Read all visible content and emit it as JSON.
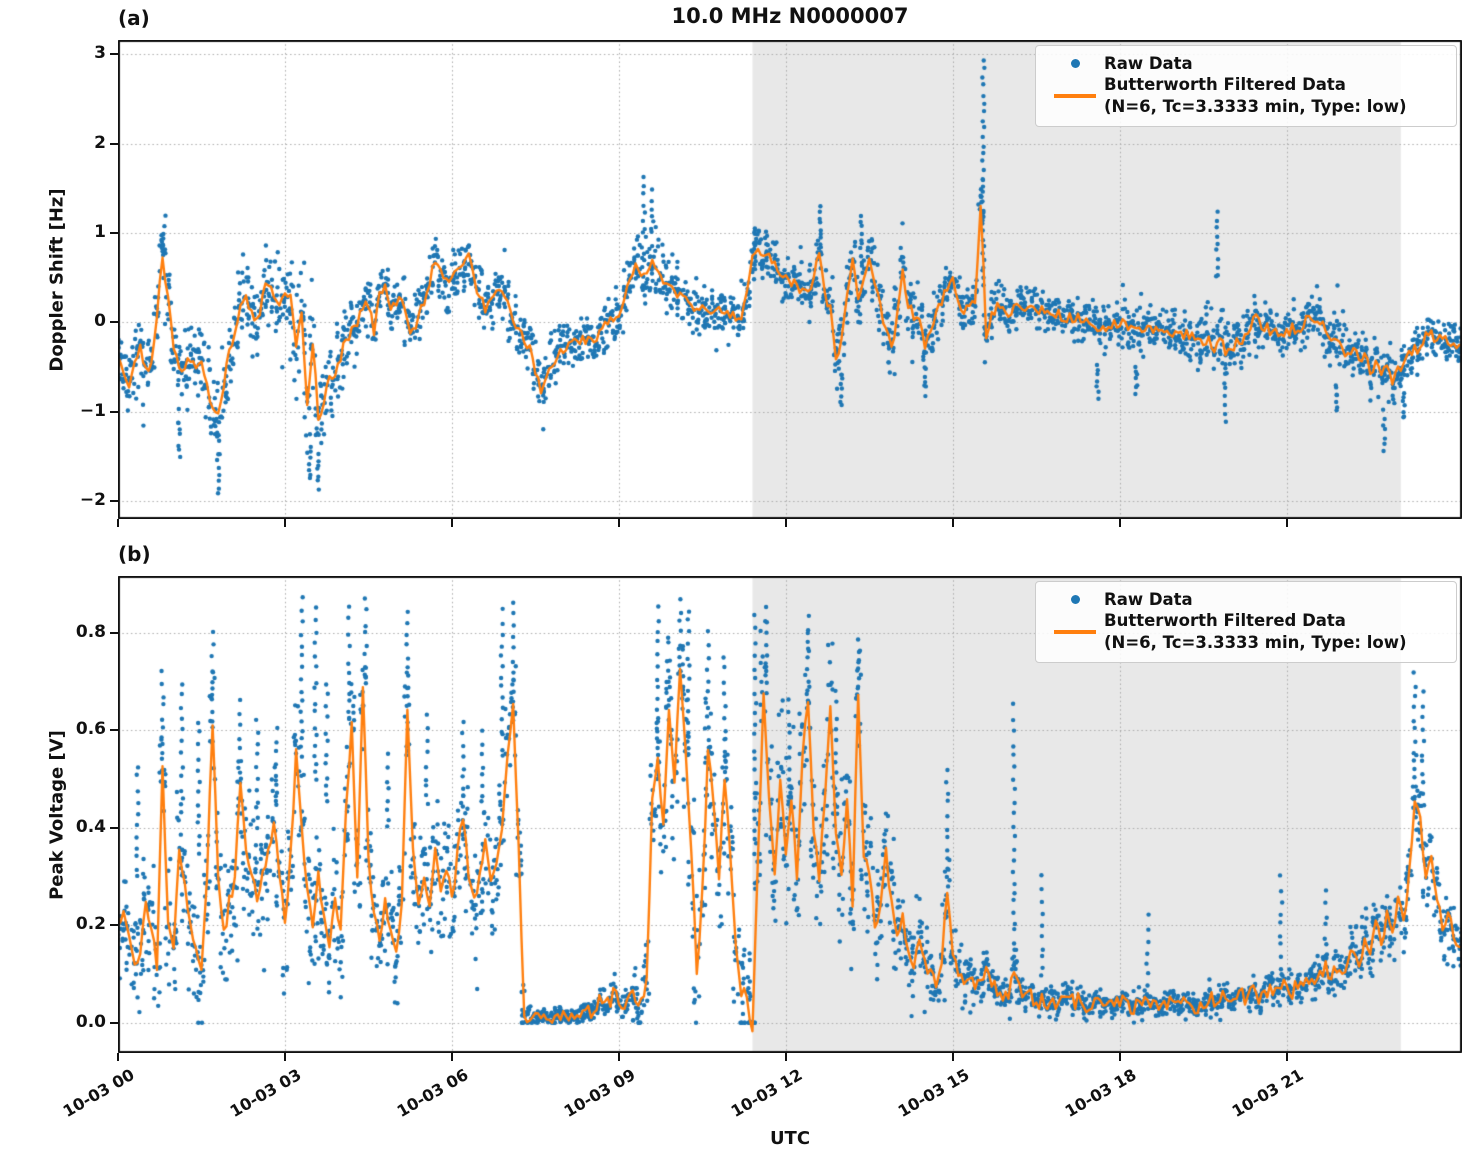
{
  "title": "10.0 MHz N0000007",
  "x_axis": {
    "label": "UTC",
    "range_hours": [
      0,
      24.15
    ],
    "ticks": [
      {
        "hour": 0,
        "label": "10-03 00"
      },
      {
        "hour": 3,
        "label": "10-03 03"
      },
      {
        "hour": 6,
        "label": "10-03 06"
      },
      {
        "hour": 9,
        "label": "10-03 09"
      },
      {
        "hour": 12,
        "label": "10-03 12"
      },
      {
        "hour": 15,
        "label": "10-03 15"
      },
      {
        "hour": 18,
        "label": "10-03 18"
      },
      {
        "hour": 21,
        "label": "10-03 21"
      }
    ]
  },
  "legend": {
    "raw": "Raw Data",
    "filtered_line1": "Butterworth Filtered Data",
    "filtered_line2": "(N=6, Tc=3.3333 min, Type: low)"
  },
  "colors": {
    "raw": "#1f77b4",
    "filtered": "#ff7f0e",
    "shade": "#e8e8e8",
    "grid": "#ababab",
    "frame": "#111111"
  },
  "chart_data": [
    {
      "type": "scatter+line",
      "panel_label": "(a)",
      "ylabel": "Doppler Shift [Hz]",
      "ylim": [
        -2.2,
        3.16
      ],
      "ytick_values": [
        3,
        2,
        1,
        0,
        -1,
        -2
      ],
      "ytick_labels": [
        "3",
        "2",
        "1",
        "0",
        "−1",
        "−2"
      ],
      "shade_hours": [
        11.4,
        23.05
      ],
      "x_start_hour": 0,
      "x_step_hour": 0.1,
      "line_jitter": 0.05,
      "clamp_min": null,
      "filtered": [
        -0.35,
        -0.55,
        -0.7,
        -0.45,
        -0.3,
        -0.55,
        -0.4,
        0.1,
        0.75,
        0.3,
        -0.3,
        -0.5,
        -0.55,
        -0.4,
        -0.5,
        -0.45,
        -0.7,
        -1.0,
        -1.05,
        -0.7,
        -0.35,
        -0.15,
        0.2,
        0.3,
        0.1,
        0.0,
        0.3,
        0.45,
        0.25,
        0.2,
        0.3,
        0.35,
        -0.3,
        0.1,
        -0.9,
        -0.2,
        -1.1,
        -0.9,
        -0.65,
        -0.6,
        -0.4,
        -0.2,
        -0.1,
        0.0,
        0.15,
        0.2,
        -0.1,
        0.3,
        0.45,
        0.15,
        0.2,
        0.25,
        0.0,
        -0.1,
        0.1,
        0.2,
        0.45,
        0.7,
        0.55,
        0.45,
        0.5,
        0.55,
        0.65,
        0.75,
        0.5,
        0.3,
        0.1,
        0.25,
        0.35,
        0.3,
        0.25,
        0.05,
        -0.1,
        -0.2,
        -0.3,
        -0.55,
        -0.75,
        -0.6,
        -0.45,
        -0.35,
        -0.3,
        -0.25,
        -0.2,
        -0.25,
        -0.2,
        -0.15,
        -0.2,
        -0.1,
        0.0,
        0.05,
        0.1,
        0.3,
        0.5,
        0.65,
        0.55,
        0.55,
        0.7,
        0.6,
        0.45,
        0.4,
        0.4,
        0.3,
        0.25,
        0.2,
        0.2,
        0.15,
        0.1,
        0.15,
        0.15,
        0.1,
        0.1,
        0.05,
        0.05,
        0.3,
        0.75,
        0.8,
        0.7,
        0.75,
        0.65,
        0.55,
        0.5,
        0.45,
        0.45,
        0.35,
        0.3,
        0.5,
        0.8,
        0.3,
        0.2,
        -0.4,
        -0.2,
        0.3,
        0.7,
        0.25,
        0.45,
        0.75,
        0.4,
        0.2,
        -0.1,
        -0.3,
        0.1,
        0.6,
        0.2,
        0.05,
        0.0,
        -0.25,
        -0.1,
        0.1,
        0.2,
        0.4,
        0.5,
        0.25,
        0.1,
        0.2,
        0.2,
        1.35,
        -0.15,
        0.1,
        0.2,
        0.15,
        0.1,
        0.15,
        0.2,
        0.15,
        0.2,
        0.1,
        0.15,
        0.1,
        0.05,
        0.1,
        0.05,
        0.1,
        0.05,
        0.0,
        0.05,
        0.0,
        -0.05,
        0.0,
        -0.05,
        0.0,
        -0.05,
        0.0,
        -0.05,
        -0.05,
        -0.1,
        -0.05,
        -0.1,
        -0.05,
        -0.1,
        -0.15,
        -0.1,
        -0.15,
        -0.1,
        -0.15,
        -0.2,
        -0.25,
        -0.2,
        -0.3,
        -0.15,
        -0.35,
        -0.3,
        -0.2,
        -0.25,
        -0.1,
        0.05,
        0.0,
        -0.05,
        -0.1,
        -0.05,
        -0.15,
        -0.1,
        -0.05,
        -0.1,
        -0.05,
        0.1,
        0.05,
        0.0,
        -0.1,
        -0.2,
        -0.15,
        -0.3,
        -0.35,
        -0.3,
        -0.45,
        -0.35,
        -0.55,
        -0.45,
        -0.6,
        -0.5,
        -0.65,
        -0.5,
        -0.45,
        -0.35,
        -0.25,
        -0.3,
        -0.15,
        -0.1,
        -0.2,
        -0.15,
        -0.25,
        -0.2,
        -0.3
      ],
      "band_halfwidth_step": 0.5,
      "band_halfwidth": [
        0.5,
        0.5,
        0.55,
        0.6,
        0.6,
        0.5,
        0.5,
        0.8,
        0.5,
        0.4,
        0.4,
        0.4,
        0.45,
        0.45,
        0.4,
        0.4,
        0.35,
        0.35,
        0.4,
        0.5,
        0.4,
        0.35,
        0.3,
        0.35,
        0.35,
        0.4,
        0.5,
        0.45,
        0.45,
        0.4,
        0.35,
        0.35,
        0.3,
        0.3,
        0.3,
        0.3,
        0.3,
        0.35,
        0.35,
        0.4,
        0.4,
        0.35,
        0.3,
        0.35,
        0.35,
        0.4,
        0.35,
        0.3,
        0.3
      ],
      "spikes": [
        {
          "x": 0.8,
          "y0": 0.8,
          "y1": 0.97
        },
        {
          "x": 1.1,
          "y0": -1.1,
          "y1": -1.5
        },
        {
          "x": 1.8,
          "y0": -1.5,
          "y1": -1.93
        },
        {
          "x": 3.45,
          "y0": -1.4,
          "y1": -1.78
        },
        {
          "x": 3.6,
          "y0": -1.5,
          "y1": -1.85
        },
        {
          "x": 9.45,
          "y0": 1.0,
          "y1": 1.62
        },
        {
          "x": 9.6,
          "y0": 1.0,
          "y1": 1.45
        },
        {
          "x": 11.45,
          "y0": 0.85,
          "y1": 1.05
        },
        {
          "x": 12.62,
          "y0": 0.95,
          "y1": 1.3
        },
        {
          "x": 13.35,
          "y0": 0.85,
          "y1": 1.2
        },
        {
          "x": 15.55,
          "y0": 0.45,
          "y1": 2.93
        },
        {
          "x": 19.75,
          "y0": 0.5,
          "y1": 1.25
        },
        {
          "x": 13.0,
          "y0": -0.6,
          "y1": -0.95
        },
        {
          "x": 14.5,
          "y0": -0.5,
          "y1": -0.8
        },
        {
          "x": 17.6,
          "y0": -0.5,
          "y1": -0.85
        },
        {
          "x": 18.3,
          "y0": -0.5,
          "y1": -0.8
        },
        {
          "x": 19.9,
          "y0": -0.6,
          "y1": -1.1
        },
        {
          "x": 21.9,
          "y0": -0.7,
          "y1": -1.0
        },
        {
          "x": 22.75,
          "y0": -1.0,
          "y1": -1.45
        },
        {
          "x": 23.1,
          "y0": -0.8,
          "y1": -1.1
        }
      ]
    },
    {
      "type": "scatter+line",
      "panel_label": "(b)",
      "ylabel": "Peak Voltage [V]",
      "ylim": [
        -0.062,
        0.917
      ],
      "ytick_values": [
        0.8,
        0.6,
        0.4,
        0.2,
        0.0
      ],
      "ytick_labels": [
        "0.8",
        "0.6",
        "0.4",
        "0.2",
        "0.0"
      ],
      "shade_hours": [
        11.4,
        23.05
      ],
      "x_start_hour": 0,
      "x_step_hour": 0.1,
      "line_jitter": 0.012,
      "clamp_min": 0.0,
      "filtered": [
        0.2,
        0.22,
        0.18,
        0.12,
        0.15,
        0.25,
        0.2,
        0.12,
        0.52,
        0.2,
        0.15,
        0.35,
        0.28,
        0.2,
        0.15,
        0.12,
        0.3,
        0.62,
        0.3,
        0.18,
        0.25,
        0.3,
        0.5,
        0.35,
        0.3,
        0.25,
        0.3,
        0.35,
        0.42,
        0.3,
        0.2,
        0.35,
        0.55,
        0.4,
        0.28,
        0.2,
        0.3,
        0.22,
        0.15,
        0.25,
        0.2,
        0.45,
        0.62,
        0.3,
        0.7,
        0.35,
        0.22,
        0.18,
        0.25,
        0.2,
        0.15,
        0.25,
        0.65,
        0.35,
        0.25,
        0.3,
        0.25,
        0.35,
        0.28,
        0.32,
        0.25,
        0.35,
        0.42,
        0.3,
        0.25,
        0.3,
        0.38,
        0.28,
        0.32,
        0.4,
        0.55,
        0.65,
        0.35,
        0.02,
        0.015,
        0.01,
        0.01,
        0.015,
        0.01,
        0.02,
        0.015,
        0.01,
        0.02,
        0.015,
        0.02,
        0.02,
        0.03,
        0.05,
        0.04,
        0.06,
        0.05,
        0.04,
        0.06,
        0.05,
        0.04,
        0.1,
        0.45,
        0.55,
        0.4,
        0.65,
        0.5,
        0.72,
        0.55,
        0.35,
        0.1,
        0.28,
        0.55,
        0.45,
        0.3,
        0.5,
        0.35,
        0.15,
        0.05,
        0.06,
        -0.02,
        0.35,
        0.68,
        0.45,
        0.3,
        0.5,
        0.35,
        0.45,
        0.3,
        0.55,
        0.65,
        0.4,
        0.3,
        0.45,
        0.65,
        0.4,
        0.3,
        0.45,
        0.25,
        0.68,
        0.35,
        0.3,
        0.2,
        0.25,
        0.35,
        0.25,
        0.18,
        0.22,
        0.15,
        0.12,
        0.18,
        0.12,
        0.1,
        0.08,
        0.12,
        0.27,
        0.15,
        0.1,
        0.08,
        0.1,
        0.07,
        0.08,
        0.12,
        0.08,
        0.06,
        0.05,
        0.06,
        0.1,
        0.07,
        0.05,
        0.06,
        0.04,
        0.05,
        0.04,
        0.05,
        0.04,
        0.05,
        0.06,
        0.04,
        0.05,
        0.03,
        0.04,
        0.05,
        0.03,
        0.04,
        0.03,
        0.04,
        0.05,
        0.03,
        0.04,
        0.03,
        0.05,
        0.04,
        0.03,
        0.04,
        0.05,
        0.04,
        0.03,
        0.05,
        0.04,
        0.03,
        0.04,
        0.05,
        0.04,
        0.05,
        0.06,
        0.04,
        0.05,
        0.06,
        0.05,
        0.07,
        0.05,
        0.06,
        0.08,
        0.06,
        0.08,
        0.07,
        0.06,
        0.08,
        0.07,
        0.09,
        0.08,
        0.1,
        0.12,
        0.09,
        0.11,
        0.1,
        0.12,
        0.15,
        0.12,
        0.18,
        0.14,
        0.2,
        0.16,
        0.22,
        0.18,
        0.25,
        0.2,
        0.3,
        0.45,
        0.42,
        0.3,
        0.35,
        0.25,
        0.2,
        0.22,
        0.18,
        0.15
      ],
      "band_halfwidth_step": 0.5,
      "band_halfwidth": [
        0.15,
        0.15,
        0.15,
        0.15,
        0.18,
        0.18,
        0.18,
        0.15,
        0.18,
        0.15,
        0.15,
        0.15,
        0.15,
        0.15,
        0.18,
        0.02,
        0.02,
        0.03,
        0.04,
        0.1,
        0.2,
        0.2,
        0.15,
        0.2,
        0.2,
        0.2,
        0.2,
        0.18,
        0.15,
        0.1,
        0.08,
        0.06,
        0.05,
        0.04,
        0.04,
        0.03,
        0.03,
        0.03,
        0.03,
        0.03,
        0.04,
        0.04,
        0.04,
        0.05,
        0.06,
        0.07,
        0.08,
        0.1,
        0.08
      ],
      "spikes": [
        {
          "x": 0.35,
          "y0": 0.3,
          "y1": 0.53
        },
        {
          "x": 0.8,
          "y0": 0.55,
          "y1": 0.72
        },
        {
          "x": 1.15,
          "y0": 0.45,
          "y1": 0.7
        },
        {
          "x": 1.45,
          "y0": 0.35,
          "y1": 0.62
        },
        {
          "x": 1.7,
          "y0": 0.62,
          "y1": 0.8
        },
        {
          "x": 2.2,
          "y0": 0.5,
          "y1": 0.66
        },
        {
          "x": 2.5,
          "y0": 0.4,
          "y1": 0.62
        },
        {
          "x": 2.85,
          "y0": 0.45,
          "y1": 0.6
        },
        {
          "x": 3.3,
          "y0": 0.55,
          "y1": 0.87
        },
        {
          "x": 3.55,
          "y0": 0.5,
          "y1": 0.85
        },
        {
          "x": 3.75,
          "y0": 0.45,
          "y1": 0.7
        },
        {
          "x": 4.15,
          "y0": 0.62,
          "y1": 0.85
        },
        {
          "x": 4.45,
          "y0": 0.7,
          "y1": 0.87
        },
        {
          "x": 4.85,
          "y0": 0.4,
          "y1": 0.55
        },
        {
          "x": 5.2,
          "y0": 0.65,
          "y1": 0.85
        },
        {
          "x": 5.55,
          "y0": 0.45,
          "y1": 0.63
        },
        {
          "x": 6.2,
          "y0": 0.45,
          "y1": 0.62
        },
        {
          "x": 6.55,
          "y0": 0.45,
          "y1": 0.6
        },
        {
          "x": 6.9,
          "y0": 0.55,
          "y1": 0.85
        },
        {
          "x": 7.1,
          "y0": 0.65,
          "y1": 0.86
        },
        {
          "x": 9.7,
          "y0": 0.55,
          "y1": 0.85
        },
        {
          "x": 9.9,
          "y0": 0.65,
          "y1": 0.8
        },
        {
          "x": 10.1,
          "y0": 0.72,
          "y1": 0.87
        },
        {
          "x": 10.25,
          "y0": 0.55,
          "y1": 0.85
        },
        {
          "x": 10.6,
          "y0": 0.55,
          "y1": 0.8
        },
        {
          "x": 10.9,
          "y0": 0.5,
          "y1": 0.75
        },
        {
          "x": 11.45,
          "y0": 0.35,
          "y1": 0.83
        },
        {
          "x": 11.65,
          "y0": 0.68,
          "y1": 0.85
        },
        {
          "x": 12.05,
          "y0": 0.45,
          "y1": 0.66
        },
        {
          "x": 12.4,
          "y0": 0.65,
          "y1": 0.84
        },
        {
          "x": 12.9,
          "y0": 0.45,
          "y1": 0.68
        },
        {
          "x": 13.3,
          "y0": 0.68,
          "y1": 0.78
        },
        {
          "x": 14.9,
          "y0": 0.3,
          "y1": 0.52
        },
        {
          "x": 16.1,
          "y0": 0.12,
          "y1": 0.65
        },
        {
          "x": 16.6,
          "y0": 0.1,
          "y1": 0.3
        },
        {
          "x": 18.5,
          "y0": 0.08,
          "y1": 0.22
        },
        {
          "x": 20.9,
          "y0": 0.1,
          "y1": 0.3
        },
        {
          "x": 21.7,
          "y0": 0.12,
          "y1": 0.27
        },
        {
          "x": 23.3,
          "y0": 0.5,
          "y1": 0.72
        },
        {
          "x": 23.45,
          "y0": 0.45,
          "y1": 0.68
        }
      ]
    }
  ]
}
